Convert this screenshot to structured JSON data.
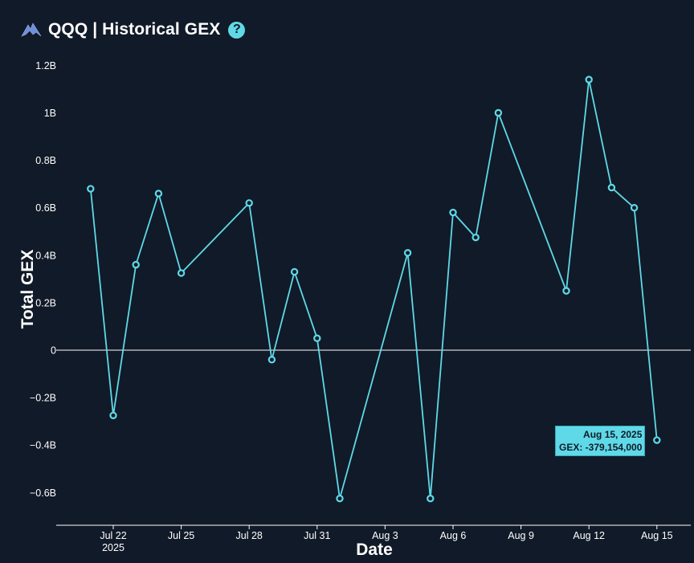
{
  "header": {
    "title": "QQQ | Historical GEX",
    "help_glyph": "?",
    "logo_icon": "mountain-logo-icon",
    "help_icon": "question-circle-icon"
  },
  "tooltip": {
    "date": "Aug 15, 2025",
    "value": "GEX: -379,154,000"
  },
  "colors": {
    "background": "#111a28",
    "line": "#5fd9e7",
    "text": "#ffffff",
    "zero_line": "#ffffff"
  },
  "chart_data": {
    "type": "line",
    "xlabel": "Date",
    "ylabel": "Total GEX",
    "ylim": [
      -0.72,
      1.22
    ],
    "y_unit": "B",
    "yticks": [
      {
        "value": 1.2,
        "label": "1.2B"
      },
      {
        "value": 1.0,
        "label": "1B"
      },
      {
        "value": 0.8,
        "label": "0.8B"
      },
      {
        "value": 0.6,
        "label": "0.6B"
      },
      {
        "value": 0.4,
        "label": "0.4B"
      },
      {
        "value": 0.2,
        "label": "0.2B"
      },
      {
        "value": 0.0,
        "label": "0"
      },
      {
        "value": -0.2,
        "label": "−0.2B"
      },
      {
        "value": -0.4,
        "label": "−0.4B"
      },
      {
        "value": -0.6,
        "label": "−0.6B"
      }
    ],
    "xticks": [
      {
        "date": "2025-07-22",
        "label": "Jul 22",
        "sublabel": "2025"
      },
      {
        "date": "2025-07-25",
        "label": "Jul 25"
      },
      {
        "date": "2025-07-28",
        "label": "Jul 28"
      },
      {
        "date": "2025-07-31",
        "label": "Jul 31"
      },
      {
        "date": "2025-08-03",
        "label": "Aug 3"
      },
      {
        "date": "2025-08-06",
        "label": "Aug 6"
      },
      {
        "date": "2025-08-09",
        "label": "Aug 9"
      },
      {
        "date": "2025-08-12",
        "label": "Aug 12"
      },
      {
        "date": "2025-08-15",
        "label": "Aug 15"
      }
    ],
    "xlim": [
      "2025-07-19",
      "2025-08-16"
    ],
    "series": [
      {
        "points": [
          {
            "x": "2025-07-21",
            "y": 0.68
          },
          {
            "x": "2025-07-22",
            "y": -0.275
          },
          {
            "x": "2025-07-23",
            "y": 0.36
          },
          {
            "x": "2025-07-24",
            "y": 0.66
          },
          {
            "x": "2025-07-25",
            "y": 0.325
          },
          {
            "x": "2025-07-28",
            "y": 0.62
          },
          {
            "x": "2025-07-29",
            "y": -0.04
          },
          {
            "x": "2025-07-30",
            "y": 0.33
          },
          {
            "x": "2025-07-31",
            "y": 0.05
          },
          {
            "x": "2025-08-01",
            "y": -0.625
          },
          {
            "x": "2025-08-04",
            "y": 0.41
          },
          {
            "x": "2025-08-05",
            "y": -0.625
          },
          {
            "x": "2025-08-06",
            "y": 0.58
          },
          {
            "x": "2025-08-07",
            "y": 0.475
          },
          {
            "x": "2025-08-08",
            "y": 1.0
          },
          {
            "x": "2025-08-11",
            "y": 0.25
          },
          {
            "x": "2025-08-12",
            "y": 1.14
          },
          {
            "x": "2025-08-13",
            "y": 0.685
          },
          {
            "x": "2025-08-14",
            "y": 0.6
          },
          {
            "x": "2025-08-15",
            "y": -0.379154
          }
        ]
      }
    ]
  }
}
